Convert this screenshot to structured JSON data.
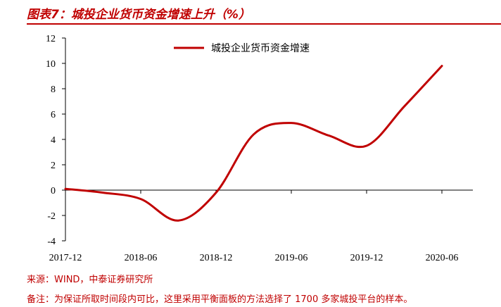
{
  "header": {
    "title": "图表7：城投企业货币资金增速上升（%）"
  },
  "footer": {
    "source": "来源：WIND，中泰证券研究所",
    "note": "备注：为保证所取时间段内可比，这里采用平衡面板的方法选择了 1700 多家城投平台的样本。"
  },
  "colors": {
    "accent": "#c00000",
    "axis": "#000000"
  },
  "chart_data": {
    "type": "line",
    "title": "",
    "xlabel": "",
    "ylabel": "",
    "ylim": [
      -4,
      12
    ],
    "yticks": [
      -4,
      -2,
      0,
      2,
      4,
      6,
      8,
      10,
      12
    ],
    "xticks": [
      "2017-12",
      "2018-06",
      "2018-12",
      "2019-06",
      "2019-12",
      "2020-06"
    ],
    "grid": false,
    "legend_position": "top",
    "series": [
      {
        "name": "城投企业货币资金增速",
        "color": "#c00000",
        "x": [
          "2017-12",
          "2018-03",
          "2018-06",
          "2018-09",
          "2018-12",
          "2019-03",
          "2019-06",
          "2019-09",
          "2019-12",
          "2020-03",
          "2020-06"
        ],
        "values": [
          0.1,
          -0.2,
          -0.7,
          -2.4,
          -0.2,
          4.4,
          5.3,
          4.3,
          3.5,
          6.6,
          9.8
        ]
      }
    ]
  }
}
